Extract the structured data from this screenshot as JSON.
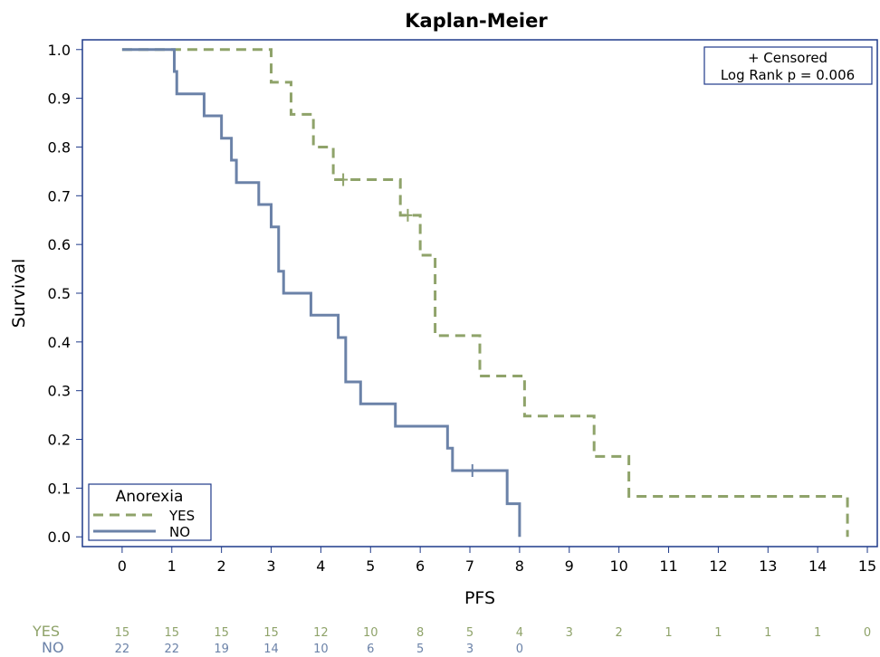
{
  "chart_data": {
    "type": "line",
    "subtype": "step",
    "title": "Kaplan-Meier",
    "xlabel": "PFS",
    "ylabel": "Survival",
    "xlim": [
      -0.8,
      15.2
    ],
    "ylim": [
      -0.02,
      1.02
    ],
    "xticks": [
      "0",
      "1",
      "2",
      "3",
      "4",
      "5",
      "6",
      "7",
      "8",
      "9",
      "10",
      "11",
      "12",
      "13",
      "14",
      "15"
    ],
    "yticks": [
      "0.0",
      "0.1",
      "0.2",
      "0.3",
      "0.4",
      "0.5",
      "0.6",
      "0.7",
      "0.8",
      "0.9",
      "1.0"
    ],
    "grid": false,
    "annotation": {
      "line1": "+ Censored",
      "line2": "Log Rank p =  0.006"
    },
    "legend": {
      "title": "Anorexia",
      "position": "bottom-left"
    },
    "series": [
      {
        "name": "YES",
        "color": "#8FA36A",
        "style": "dashed",
        "steps": [
          [
            0,
            1.0
          ],
          [
            3.0,
            0.933
          ],
          [
            3.4,
            0.867
          ],
          [
            3.85,
            0.8
          ],
          [
            4.25,
            0.733
          ],
          [
            5.6,
            0.66
          ],
          [
            6.0,
            0.578
          ],
          [
            6.3,
            0.413
          ],
          [
            7.2,
            0.33
          ],
          [
            8.1,
            0.248
          ],
          [
            9.5,
            0.165
          ],
          [
            10.2,
            0.083
          ],
          [
            14.6,
            0.0
          ]
        ],
        "censored": [
          [
            4.45,
            0.733
          ],
          [
            5.75,
            0.66
          ]
        ]
      },
      {
        "name": "NO",
        "color": "#6B82A8",
        "style": "solid",
        "steps": [
          [
            0,
            1.0
          ],
          [
            1.05,
            0.955
          ],
          [
            1.1,
            0.909
          ],
          [
            1.65,
            0.864
          ],
          [
            2.0,
            0.818
          ],
          [
            2.2,
            0.773
          ],
          [
            2.3,
            0.727
          ],
          [
            2.75,
            0.682
          ],
          [
            3.0,
            0.636
          ],
          [
            3.15,
            0.545
          ],
          [
            3.25,
            0.5
          ],
          [
            3.8,
            0.455
          ],
          [
            4.35,
            0.409
          ],
          [
            4.5,
            0.318
          ],
          [
            4.8,
            0.273
          ],
          [
            5.5,
            0.227
          ],
          [
            6.55,
            0.182
          ],
          [
            6.65,
            0.136
          ],
          [
            7.75,
            0.068
          ],
          [
            8.0,
            0.0
          ]
        ],
        "censored": [
          [
            7.05,
            0.136
          ]
        ]
      }
    ],
    "at_risk": {
      "YES": [
        "15",
        "15",
        "15",
        "15",
        "12",
        "10",
        "8",
        "5",
        "4",
        "3",
        "2",
        "1",
        "1",
        "1",
        "1",
        "0"
      ],
      "NO": [
        "22",
        "22",
        "19",
        "14",
        "10",
        "6",
        "5",
        "3",
        "0"
      ]
    }
  }
}
